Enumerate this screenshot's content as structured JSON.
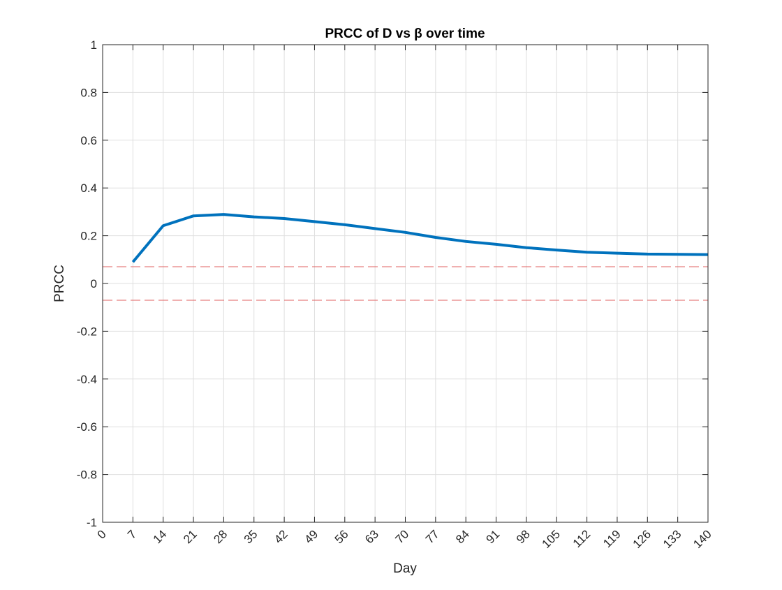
{
  "chart_data": {
    "type": "line",
    "title": "PRCC of D vs β over time",
    "xlabel": "Day",
    "ylabel": "PRCC",
    "xlim": [
      0,
      140
    ],
    "ylim": [
      -1,
      1
    ],
    "grid": true,
    "x_ticks": [
      0,
      7,
      14,
      21,
      28,
      35,
      42,
      49,
      56,
      63,
      70,
      77,
      84,
      91,
      98,
      105,
      112,
      119,
      126,
      133,
      140
    ],
    "y_ticks": [
      -1,
      -0.8,
      -0.6,
      -0.4,
      -0.2,
      0,
      0.2,
      0.4,
      0.6,
      0.8,
      1
    ],
    "series": [
      {
        "color": "#0072BD",
        "style": "solid",
        "x": [
          7,
          14,
          21,
          28,
          35,
          42,
          49,
          56,
          63,
          70,
          77,
          84,
          91,
          98,
          105,
          112,
          119,
          126,
          133,
          140
        ],
        "y": [
          0.09,
          0.242,
          0.283,
          0.289,
          0.279,
          0.272,
          0.259,
          0.246,
          0.23,
          0.214,
          0.193,
          0.176,
          0.164,
          0.15,
          0.14,
          0.131,
          0.127,
          0.123,
          0.122,
          0.121
        ]
      }
    ],
    "reference_lines": [
      {
        "y": 0.07,
        "color": "#E06060",
        "style": "dashed"
      },
      {
        "y": -0.07,
        "color": "#E06060",
        "style": "dashed"
      }
    ]
  }
}
